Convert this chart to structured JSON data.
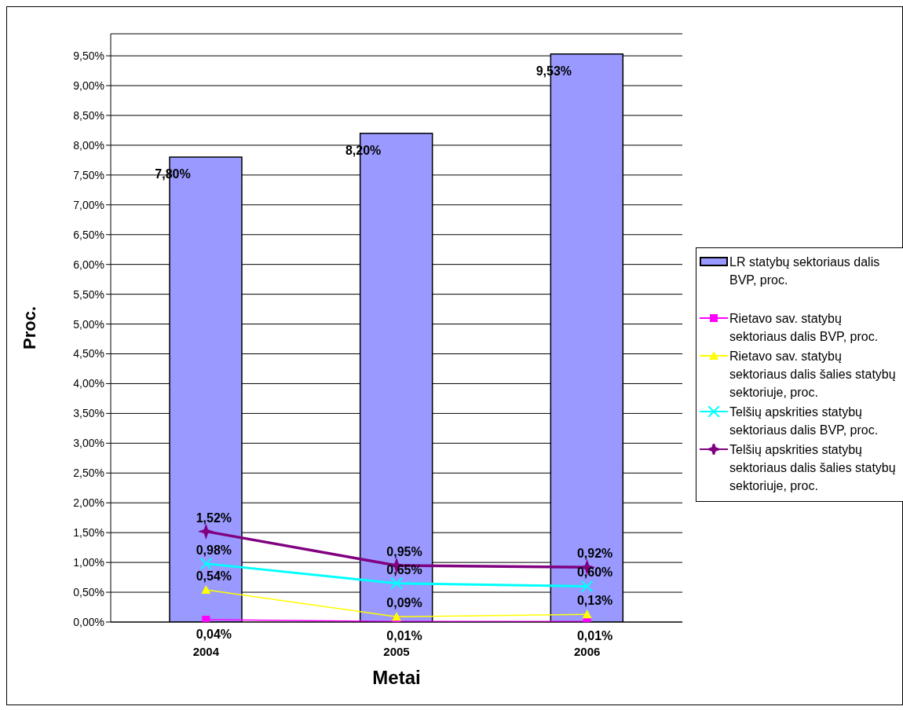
{
  "chart_data": {
    "type": "bar",
    "xlabel": "Metai",
    "ylabel": "Proc.",
    "categories": [
      "2004",
      "2005",
      "2006"
    ],
    "series": [
      {
        "name": "LR statybų sektoriaus dalis BVP, proc.",
        "color": "#9999ff",
        "values": [
          7.8,
          8.2,
          9.53
        ],
        "value_labels": [
          "7,80%",
          "8,20%",
          "9,53%"
        ]
      },
      {
        "name": "Rietavo sav. statybų sektoriaus dalis BVP, proc.",
        "type": "line",
        "marker": "square",
        "color": "#ff00ff",
        "values": [
          0.04,
          0.01,
          0.01
        ],
        "value_labels": [
          "0,04%",
          "0,01%",
          "0,01%"
        ]
      },
      {
        "name": "Rietavo sav. statybų sektoriaus dalis šalies statybų sektoriuje, proc.",
        "type": "line",
        "marker": "triangle",
        "color": "#ffff00",
        "values": [
          0.54,
          0.09,
          0.13
        ],
        "value_labels": [
          "0,54%",
          "0,09%",
          "0,13%"
        ]
      },
      {
        "name": "Telšių apskrities statybų sektoriaus dalis BVP, proc.",
        "type": "line",
        "marker": "cross",
        "color": "#00ffff",
        "values": [
          0.98,
          0.65,
          0.6
        ],
        "value_labels": [
          "0,98%",
          "0,65%",
          "0,60%"
        ]
      },
      {
        "name": "Telšių apskrities statybų sektoriaus dalis šalies statybų sektoriuje, proc.",
        "type": "line",
        "marker": "star",
        "color": "#800080",
        "values": [
          1.52,
          0.95,
          0.92
        ],
        "value_labels": [
          "1,52%",
          "0,95%",
          "0,92%"
        ]
      }
    ],
    "ylim": [
      0,
      9.87
    ],
    "yticks": [
      {
        "value": 0,
        "label": "0,00%"
      },
      {
        "value": 0.5,
        "label": "0,50%"
      },
      {
        "value": 1,
        "label": "1,00%"
      },
      {
        "value": 1.5,
        "label": "1,50%"
      },
      {
        "value": 2,
        "label": "2,00%"
      },
      {
        "value": 2.5,
        "label": "2,50%"
      },
      {
        "value": 3,
        "label": "3,00%"
      },
      {
        "value": 3.5,
        "label": "3,50%"
      },
      {
        "value": 4,
        "label": "4,00%"
      },
      {
        "value": 4.5,
        "label": "4,50%"
      },
      {
        "value": 5,
        "label": "5,00%"
      },
      {
        "value": 5.5,
        "label": "5,50%"
      },
      {
        "value": 6,
        "label": "6,00%"
      },
      {
        "value": 6.5,
        "label": "6,50%"
      },
      {
        "value": 7,
        "label": "7,00%"
      },
      {
        "value": 7.5,
        "label": "7,50%"
      },
      {
        "value": 8,
        "label": "8,00%"
      },
      {
        "value": 8.5,
        "label": "8,50%"
      },
      {
        "value": 9,
        "label": "9,00%"
      },
      {
        "value": 9.5,
        "label": "9,50%"
      }
    ],
    "grid": "y",
    "legend": "right"
  }
}
